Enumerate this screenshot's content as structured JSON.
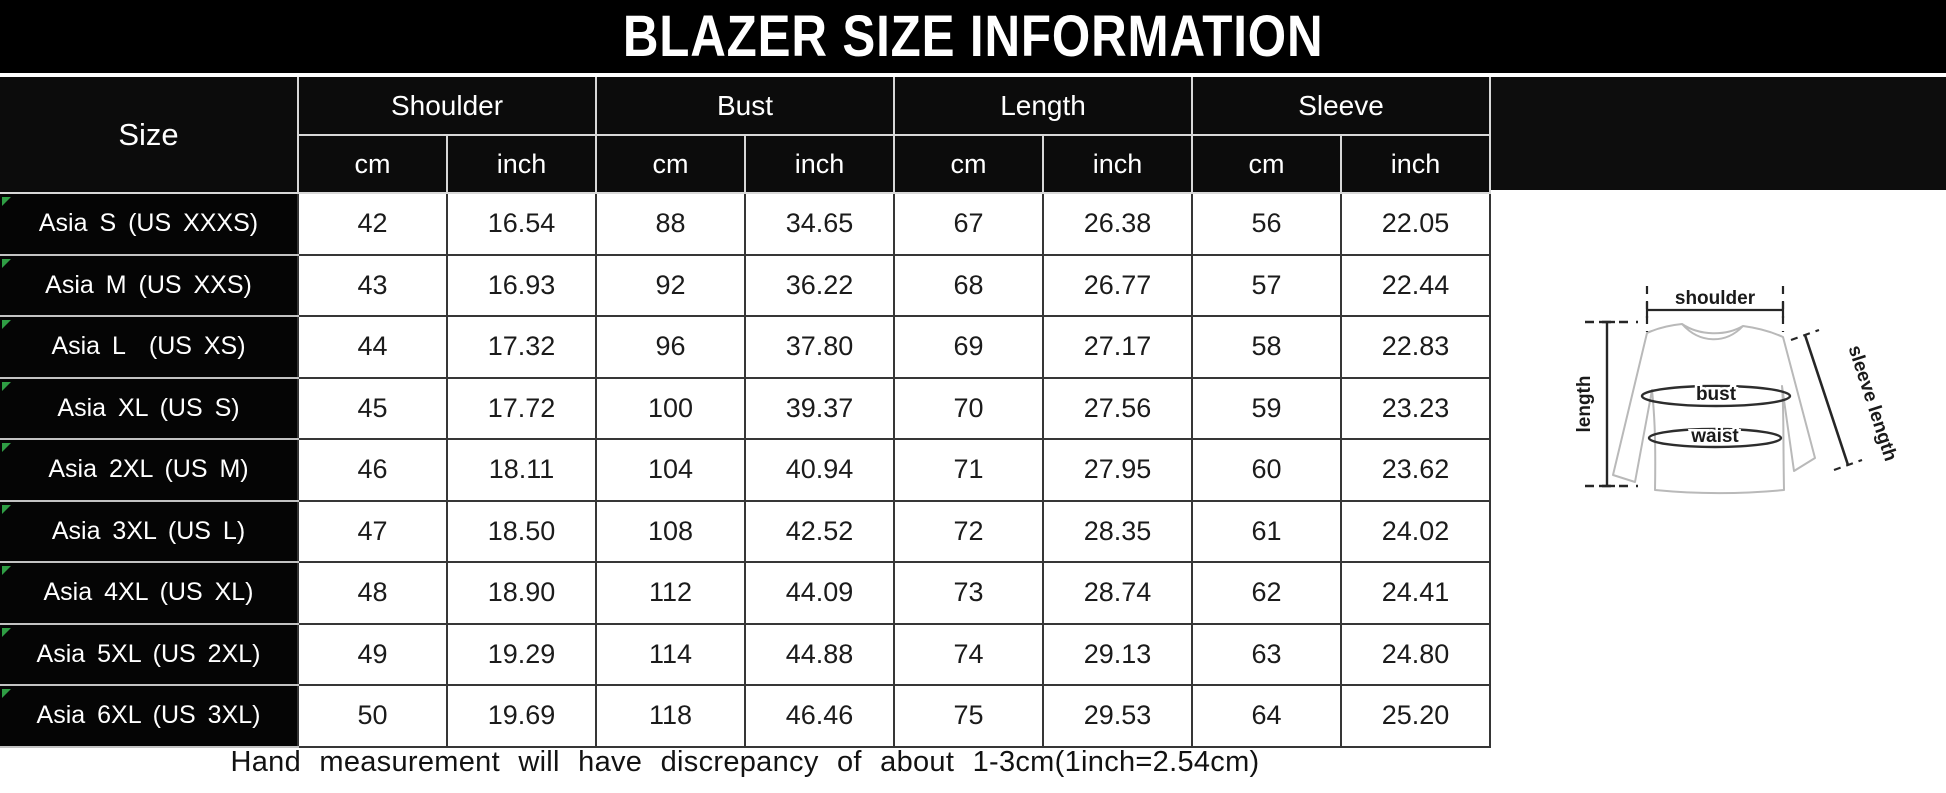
{
  "title": "BLAZER SIZE INFORMATION",
  "table": {
    "size_header": "Size",
    "groups": [
      "Shoulder",
      "Bust",
      "Length",
      "Sleeve"
    ],
    "units": [
      "cm",
      "inch",
      "cm",
      "inch",
      "cm",
      "inch",
      "cm",
      "inch"
    ],
    "rows": [
      {
        "size": "Asia S (US XXXS)",
        "values": [
          "42",
          "16.54",
          "88",
          "34.65",
          "67",
          "26.38",
          "56",
          "22.05"
        ]
      },
      {
        "size": "Asia M (US XXS)",
        "values": [
          "43",
          "16.93",
          "92",
          "36.22",
          "68",
          "26.77",
          "57",
          "22.44"
        ]
      },
      {
        "size": "Asia L  (US XS)",
        "values": [
          "44",
          "17.32",
          "96",
          "37.80",
          "69",
          "27.17",
          "58",
          "22.83"
        ]
      },
      {
        "size": "Asia XL (US S)",
        "values": [
          "45",
          "17.72",
          "100",
          "39.37",
          "70",
          "27.56",
          "59",
          "23.23"
        ]
      },
      {
        "size": "Asia 2XL (US M)",
        "values": [
          "46",
          "18.11",
          "104",
          "40.94",
          "71",
          "27.95",
          "60",
          "23.62"
        ]
      },
      {
        "size": "Asia 3XL (US L)",
        "values": [
          "47",
          "18.50",
          "108",
          "42.52",
          "72",
          "28.35",
          "61",
          "24.02"
        ]
      },
      {
        "size": "Asia 4XL (US XL)",
        "values": [
          "48",
          "18.90",
          "112",
          "44.09",
          "73",
          "28.74",
          "62",
          "24.41"
        ]
      },
      {
        "size": "Asia 5XL (US 2XL)",
        "values": [
          "49",
          "19.29",
          "114",
          "44.88",
          "74",
          "29.13",
          "63",
          "24.80"
        ]
      },
      {
        "size": "Asia 6XL (US 3XL)",
        "values": [
          "50",
          "19.69",
          "118",
          "46.46",
          "75",
          "29.53",
          "64",
          "25.20"
        ]
      }
    ]
  },
  "footer": {
    "note": "Hand measurement will have discrepancy of about 1-3cm(1inch=2.54cm)"
  },
  "diagram": {
    "shoulder_label": "shoulder",
    "length_label": "length",
    "bust_label": "bust",
    "waist_label": "waist",
    "sleeve_length_label": "sleeve length"
  },
  "colors": {
    "title_bg": "#000000",
    "header_bg": "#0d0d0d",
    "size_cell_bg": "#050505",
    "header_gridline": "#d8d8d8",
    "data_gridline": "#363636",
    "corner_marker_green": "#2f9e44",
    "text_light": "#ffffff",
    "text_dark": "#1b1b1b"
  },
  "chart_data": {
    "type": "table",
    "title": "BLAZER SIZE INFORMATION",
    "column_groups": [
      "Shoulder",
      "Bust",
      "Length",
      "Sleeve"
    ],
    "columns": [
      "Size",
      "Shoulder cm",
      "Shoulder inch",
      "Bust cm",
      "Bust inch",
      "Length cm",
      "Length inch",
      "Sleeve cm",
      "Sleeve inch"
    ],
    "rows": [
      [
        "Asia S (US XXXS)",
        42,
        16.54,
        88,
        34.65,
        67,
        26.38,
        56,
        22.05
      ],
      [
        "Asia M (US XXS)",
        43,
        16.93,
        92,
        36.22,
        68,
        26.77,
        57,
        22.44
      ],
      [
        "Asia L (US XS)",
        44,
        17.32,
        96,
        37.8,
        69,
        27.17,
        58,
        22.83
      ],
      [
        "Asia XL (US S)",
        45,
        17.72,
        100,
        39.37,
        70,
        27.56,
        59,
        23.23
      ],
      [
        "Asia 2XL (US M)",
        46,
        18.11,
        104,
        40.94,
        71,
        27.95,
        60,
        23.62
      ],
      [
        "Asia 3XL (US L)",
        47,
        18.5,
        108,
        42.52,
        72,
        28.35,
        61,
        24.02
      ],
      [
        "Asia 4XL (US XL)",
        48,
        18.9,
        112,
        44.09,
        73,
        28.74,
        62,
        24.41
      ],
      [
        "Asia 5XL (US 2XL)",
        49,
        19.29,
        114,
        44.88,
        74,
        29.13,
        63,
        24.8
      ],
      [
        "Asia 6XL (US 3XL)",
        50,
        19.69,
        118,
        46.46,
        75,
        29.53,
        64,
        25.2
      ]
    ],
    "note": "Hand measurement will have discrepancy of about 1-3cm(1inch=2.54cm)",
    "diagram_annotations": [
      "shoulder",
      "length",
      "bust",
      "waist",
      "sleeve length"
    ]
  }
}
